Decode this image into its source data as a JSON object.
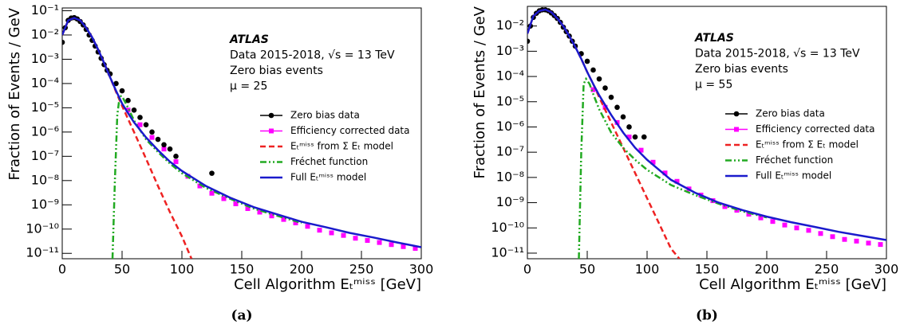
{
  "chart_data": [
    {
      "type": "scatter",
      "caption": "(a)",
      "xlabel": "Cell Algorithm Eₜᵐⁱˢˢ [GeV]",
      "ylabel": "Fraction of Events / GeV",
      "annotations": [
        "ATLAS",
        "Data 2015-2018, √s = 13 TeV",
        "Zero bias events",
        "μ = 25"
      ],
      "log_y": true,
      "xlim": [
        0,
        300
      ],
      "ylim": [
        6e-12,
        0.13
      ],
      "xticks": [
        0,
        50,
        100,
        150,
        200,
        250,
        300
      ],
      "yticks": [
        {
          "value": 1e-11,
          "label": "10⁻¹¹"
        },
        {
          "value": 1e-10,
          "label": "10⁻¹⁰"
        },
        {
          "value": 1e-09,
          "label": "10⁻⁹"
        },
        {
          "value": 1e-08,
          "label": "10⁻⁸"
        },
        {
          "value": 1e-07,
          "label": "10⁻⁷"
        },
        {
          "value": 1e-06,
          "label": "10⁻⁶"
        },
        {
          "value": 1e-05,
          "label": "10⁻⁵"
        },
        {
          "value": 0.0001,
          "label": "10⁻⁴"
        },
        {
          "value": 0.001,
          "label": "10⁻³"
        },
        {
          "value": 0.01,
          "label": "10⁻²"
        },
        {
          "value": 0.1,
          "label": "10⁻¹"
        }
      ],
      "series": [
        {
          "name": "Zero bias data",
          "color": "#000000",
          "style": "circle",
          "x": [
            0,
            2.5,
            5,
            7.5,
            10,
            12.5,
            15,
            17.5,
            20,
            22.5,
            25,
            27.5,
            30,
            32.5,
            35,
            37.5,
            40,
            45,
            50,
            55,
            60,
            65,
            70,
            75,
            80,
            85,
            90,
            95,
            125
          ],
          "values": [
            0.005,
            0.02,
            0.04,
            0.05,
            0.052,
            0.046,
            0.036,
            0.026,
            0.017,
            0.01,
            0.006,
            0.0035,
            0.002,
            0.0011,
            0.0006,
            0.00035,
            0.00025,
            0.0001,
            5e-05,
            2e-05,
            8e-06,
            4e-06,
            2e-06,
            1e-06,
            5e-07,
            3e-07,
            2e-07,
            1e-07,
            2e-08
          ]
        },
        {
          "name": "Efficiency corrected data",
          "color": "#ff00ff",
          "style": "square",
          "x": [
            55,
            65,
            75,
            85,
            95,
            105,
            115,
            125,
            135,
            145,
            155,
            165,
            175,
            185,
            195,
            205,
            215,
            225,
            235,
            245,
            255,
            265,
            275,
            285,
            295
          ],
          "values": [
            8e-06,
            2e-06,
            6e-07,
            2e-07,
            6e-08,
            1.5e-08,
            6e-09,
            3e-09,
            1.8e-09,
            1.1e-09,
            7e-10,
            5e-10,
            3.5e-10,
            2.5e-10,
            1.8e-10,
            1.3e-10,
            9e-11,
            7e-11,
            5.5e-11,
            4.2e-11,
            3.4e-11,
            2.8e-11,
            2.3e-11,
            1.9e-11,
            1.6e-11
          ]
        },
        {
          "name": "Eₜᵐⁱˢˢ from Σ Eₜ model",
          "color": "#ee2222",
          "style": "dashed",
          "x": [
            0,
            5,
            10,
            15,
            20,
            25,
            30,
            35,
            40,
            45,
            50,
            60,
            70,
            80,
            90,
            100,
            108
          ],
          "values": [
            0.01,
            0.04,
            0.05,
            0.04,
            0.02,
            0.008,
            0.0025,
            0.0007,
            0.00018,
            4.5e-05,
            1.2e-05,
            1e-06,
            8e-08,
            6e-09,
            5e-10,
            5e-11,
            6e-12
          ]
        },
        {
          "name": "Fréchet function",
          "color": "#22aa22",
          "style": "dashdot",
          "x": [
            42,
            44,
            46,
            48,
            50,
            55,
            60,
            70,
            80,
            90,
            100,
            120,
            140,
            160,
            180,
            200
          ],
          "values": [
            6e-12,
            1e-08,
            5e-06,
            3e-05,
            3e-05,
            1e-05,
            3e-06,
            5e-07,
            1.5e-07,
            5e-08,
            2e-08,
            5e-09,
            1.8e-09,
            7e-10,
            3.5e-10,
            1.8e-10
          ]
        },
        {
          "name": "Full Eₜᵐⁱˢˢ model",
          "color": "#1a1acc",
          "style": "solid",
          "x": [
            0,
            5,
            10,
            15,
            20,
            25,
            30,
            35,
            40,
            45,
            50,
            55,
            60,
            70,
            80,
            90,
            100,
            120,
            140,
            160,
            180,
            200,
            220,
            240,
            260,
            280,
            300
          ],
          "values": [
            0.01,
            0.04,
            0.05,
            0.04,
            0.02,
            0.008,
            0.0025,
            0.0007,
            0.00018,
            5e-05,
            1.5e-05,
            6e-06,
            2.5e-06,
            6e-07,
            1.8e-07,
            6e-08,
            2.5e-08,
            6e-09,
            2e-09,
            8e-10,
            4e-10,
            2e-10,
            1.2e-10,
            7e-11,
            4.5e-11,
            2.8e-11,
            1.8e-11
          ]
        }
      ]
    },
    {
      "type": "scatter",
      "caption": "(b)",
      "xlabel": "Cell Algorithm Eₜᵐⁱˢˢ [GeV]",
      "ylabel": "Fraction of Events / GeV",
      "annotations": [
        "ATLAS",
        "Data 2015-2018, √s = 13 TeV",
        "Zero bias events",
        "μ = 55"
      ],
      "log_y": true,
      "xlim": [
        0,
        300
      ],
      "ylim": [
        6e-12,
        0.06
      ],
      "xticks": [
        0,
        50,
        100,
        150,
        200,
        250,
        300
      ],
      "yticks": [
        {
          "value": 1e-11,
          "label": "10⁻¹¹"
        },
        {
          "value": 1e-10,
          "label": "10⁻¹⁰"
        },
        {
          "value": 1e-09,
          "label": "10⁻⁹"
        },
        {
          "value": 1e-08,
          "label": "10⁻⁸"
        },
        {
          "value": 1e-07,
          "label": "10⁻⁷"
        },
        {
          "value": 1e-06,
          "label": "10⁻⁶"
        },
        {
          "value": 1e-05,
          "label": "10⁻⁵"
        },
        {
          "value": 0.0001,
          "label": "10⁻⁴"
        },
        {
          "value": 0.001,
          "label": "10⁻³"
        },
        {
          "value": 0.01,
          "label": "10⁻²"
        }
      ],
      "series": [
        {
          "name": "Zero bias data",
          "color": "#000000",
          "style": "circle",
          "x": [
            0,
            2.5,
            5,
            7.5,
            10,
            12.5,
            15,
            17.5,
            20,
            22.5,
            25,
            27.5,
            30,
            32.5,
            35,
            37.5,
            40,
            45,
            50,
            55,
            60,
            65,
            70,
            75,
            80,
            85,
            90,
            97.5
          ],
          "values": [
            0.0025,
            0.01,
            0.022,
            0.032,
            0.04,
            0.044,
            0.044,
            0.04,
            0.033,
            0.026,
            0.02,
            0.014,
            0.009,
            0.006,
            0.004,
            0.0025,
            0.0016,
            0.0008,
            0.0004,
            0.00018,
            8e-05,
            3.5e-05,
            1.5e-05,
            6e-06,
            2.5e-06,
            1e-06,
            4e-07,
            4e-07
          ]
        },
        {
          "name": "Efficiency corrected data",
          "color": "#ff00ff",
          "style": "square",
          "x": [
            55,
            65,
            75,
            85,
            95,
            105,
            115,
            125,
            135,
            145,
            155,
            165,
            175,
            185,
            195,
            205,
            215,
            225,
            235,
            245,
            255,
            265,
            275,
            285,
            295
          ],
          "values": [
            3e-05,
            6e-06,
            1.5e-06,
            4e-07,
            1.2e-07,
            4e-08,
            1.5e-08,
            7e-09,
            3.5e-09,
            2e-09,
            1.2e-09,
            7e-10,
            5e-10,
            3.5e-10,
            2.5e-10,
            1.8e-10,
            1.3e-10,
            1e-10,
            8e-11,
            6e-11,
            4.5e-11,
            3.5e-11,
            3e-11,
            2.5e-11,
            2.2e-11
          ]
        },
        {
          "name": "Eₜᵐⁱˢˢ from Σ Eₜ model",
          "color": "#ee2222",
          "style": "dashed",
          "x": [
            0,
            5,
            10,
            15,
            20,
            25,
            30,
            35,
            40,
            45,
            50,
            55,
            60,
            70,
            80,
            90,
            100,
            110,
            120,
            127
          ],
          "values": [
            0.005,
            0.025,
            0.04,
            0.045,
            0.035,
            0.02,
            0.01,
            0.004,
            0.0015,
            0.0005,
            0.00015,
            5e-05,
            1.5e-05,
            1.5e-06,
            1.5e-07,
            1.5e-08,
            1.5e-09,
            1.5e-10,
            1.5e-11,
            6e-12
          ]
        },
        {
          "name": "Fréchet function",
          "color": "#22aa22",
          "style": "dashdot",
          "x": [
            43,
            45,
            47,
            49,
            52,
            55,
            60,
            70,
            80,
            90,
            100,
            120,
            140,
            160,
            180,
            200
          ],
          "values": [
            6e-12,
            1e-07,
            5e-05,
            8e-05,
            5e-05,
            2e-05,
            5e-06,
            6e-07,
            1.5e-07,
            5e-08,
            2e-08,
            5e-09,
            2e-09,
            9e-10,
            4.5e-10,
            2.6e-10
          ]
        },
        {
          "name": "Full Eₜᵐⁱˢˢ model",
          "color": "#1a1acc",
          "style": "solid",
          "x": [
            0,
            5,
            10,
            15,
            20,
            25,
            30,
            35,
            40,
            45,
            50,
            55,
            60,
            70,
            80,
            90,
            100,
            120,
            140,
            160,
            180,
            200,
            220,
            240,
            260,
            280,
            300
          ],
          "values": [
            0.005,
            0.025,
            0.04,
            0.045,
            0.035,
            0.02,
            0.01,
            0.004,
            0.0015,
            0.0005,
            0.00015,
            5e-05,
            1.8e-05,
            3e-06,
            6e-07,
            1.5e-07,
            5e-08,
            8e-09,
            2.5e-09,
            1e-09,
            5e-10,
            2.8e-10,
            1.7e-10,
            1.1e-10,
            7e-11,
            4.8e-11,
            3.3e-11
          ]
        }
      ]
    }
  ]
}
